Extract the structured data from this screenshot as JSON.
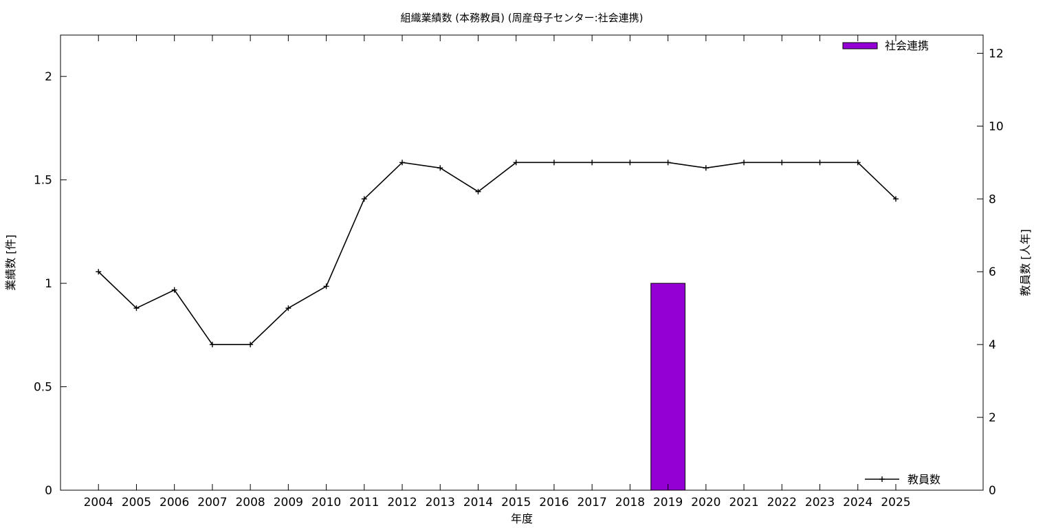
{
  "chart_data": {
    "type": "bar+line",
    "title": "組織業績数 (本務教員) (周産母子センター:社会連携)",
    "xlabel": "年度",
    "ylabel_left": "業績数 [件]",
    "ylabel_right": "教員数 [人年]",
    "categories": [
      "2004",
      "2005",
      "2006",
      "2007",
      "2008",
      "2009",
      "2010",
      "2011",
      "2012",
      "2013",
      "2014",
      "2015",
      "2016",
      "2017",
      "2018",
      "2019",
      "2020",
      "2021",
      "2022",
      "2023",
      "2024",
      "2025"
    ],
    "x_extra_slots": 2,
    "ylim_left": [
      0,
      2.2
    ],
    "yticks_left": [
      0,
      0.5,
      1,
      1.5,
      2
    ],
    "ylim_right": [
      0,
      12.5
    ],
    "yticks_right": [
      0,
      2,
      4,
      6,
      8,
      10,
      12
    ],
    "grid": false,
    "bar_series": {
      "name": "社会連携",
      "color": "#9400d3",
      "axis": "left",
      "values": [
        0,
        0,
        0,
        0,
        0,
        0,
        0,
        0,
        0,
        0,
        0,
        0,
        0,
        0,
        0,
        1,
        0,
        0,
        0,
        0,
        0,
        0
      ]
    },
    "line_series": {
      "name": "教員数",
      "color": "#000000",
      "axis": "right",
      "values": [
        6,
        5,
        5.5,
        4,
        4,
        5,
        5.6,
        8,
        9,
        8.85,
        8.2,
        9,
        9,
        9,
        9,
        9,
        8.85,
        9,
        9,
        9,
        9,
        8
      ]
    },
    "legend": {
      "bar_position": "top-right",
      "line_position": "bottom-right"
    }
  }
}
